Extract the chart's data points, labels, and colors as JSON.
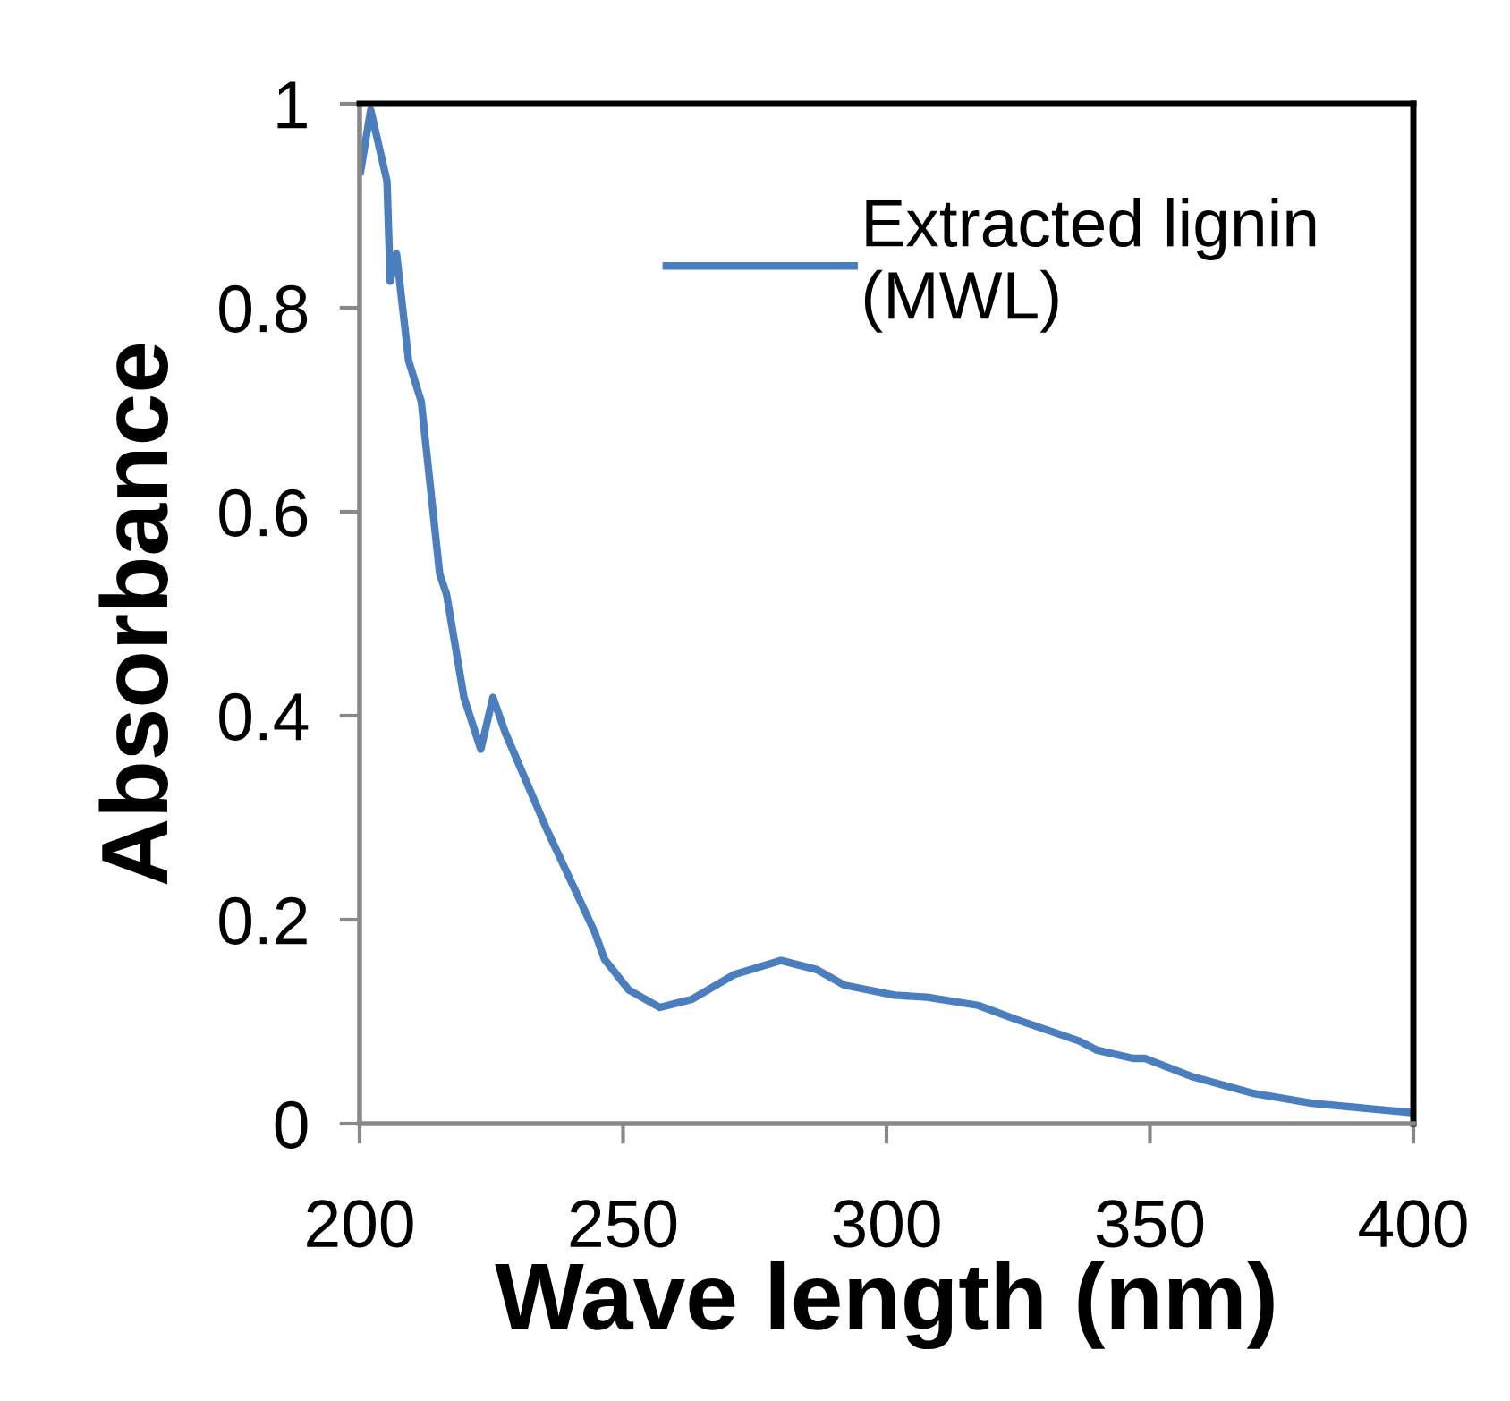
{
  "chart_data": {
    "type": "line",
    "xlabel": "Wave length (nm)",
    "ylabel": "Absorbance",
    "xlim": [
      200,
      400
    ],
    "ylim": [
      0,
      1
    ],
    "xticks": [
      200,
      250,
      300,
      350,
      400
    ],
    "yticks": [
      0,
      {
        "value": 0.2,
        "label": "0.2"
      },
      {
        "value": 0.4,
        "label": "0.4"
      },
      {
        "value": 0.6,
        "label": "0.6"
      },
      {
        "value": 0.8,
        "label": "0.8"
      },
      1
    ],
    "grid": false,
    "legend": "top right",
    "marker": "none",
    "line_style": "solid",
    "series": [
      {
        "name": "Extracted lignin\n(MWL)",
        "color": "#4a7ebf",
        "x": [
          200.2,
          202.1,
          205.2,
          205.8,
          207,
          209.3,
          211.7,
          215.2,
          216.5,
          219.8,
          223,
          225.3,
          227.6,
          235.4,
          244.6,
          246.5,
          251.1,
          257,
          263.1,
          271,
          280,
          286.8,
          291.9,
          301.5,
          307.7,
          317.4,
          324.2,
          336.6,
          340,
          346.8,
          349.1,
          358.1,
          369.4,
          380.7,
          399.4
        ],
        "values": [
          0.934,
          0.994,
          0.924,
          0.826,
          0.853,
          0.748,
          0.708,
          0.539,
          0.519,
          0.418,
          0.367,
          0.418,
          0.384,
          0.29,
          0.188,
          0.161,
          0.131,
          0.114,
          0.122,
          0.146,
          0.16,
          0.151,
          0.136,
          0.126,
          0.124,
          0.116,
          0.103,
          0.081,
          0.072,
          0.064,
          0.064,
          0.046,
          0.03,
          0.02,
          0.011
        ]
      }
    ]
  }
}
